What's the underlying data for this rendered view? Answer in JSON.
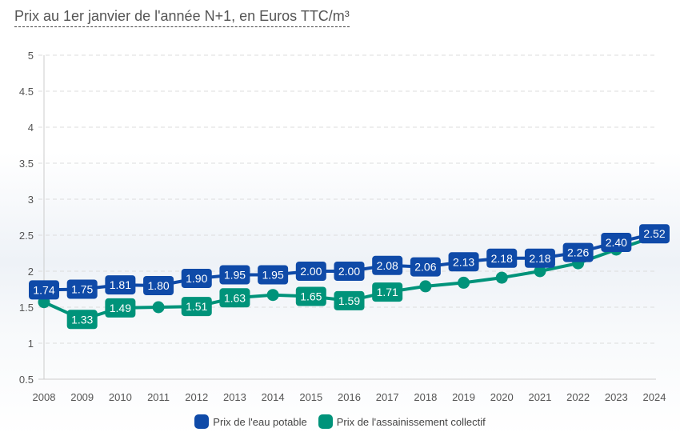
{
  "chart_data": {
    "type": "line",
    "title": "Prix au 1er janvier de l'année N+1, en Euros TTC/m³",
    "xlabel": "",
    "ylabel": "",
    "categories": [
      "2008",
      "2009",
      "2010",
      "2011",
      "2012",
      "2013",
      "2014",
      "2015",
      "2016",
      "2017",
      "2018",
      "2019",
      "2020",
      "2021",
      "2022",
      "2023",
      "2024"
    ],
    "ylim": [
      0.5,
      5
    ],
    "yticks": [
      "0.5",
      "1",
      "1.5",
      "2",
      "2.5",
      "3",
      "3.5",
      "4",
      "4.5",
      "5"
    ],
    "grid": true,
    "legend_position": "bottom",
    "series": [
      {
        "name": "Prix de l'eau potable",
        "color": "#0f4aa8",
        "values": [
          1.74,
          1.75,
          1.81,
          1.8,
          1.9,
          1.95,
          1.95,
          2.0,
          2.0,
          2.08,
          2.06,
          2.13,
          2.18,
          2.18,
          2.26,
          2.4,
          2.52
        ],
        "labels": [
          "1.74",
          "1.75",
          "1.81",
          "1.80",
          "1.90",
          "1.95",
          "1.95",
          "2.00",
          "2.00",
          "2.08",
          "2.06",
          "2.13",
          "2.18",
          "2.18",
          "2.26",
          "2.40",
          "2.52"
        ]
      },
      {
        "name": "Prix de l'assainissement collectif",
        "color": "#00937a",
        "values": [
          1.57,
          1.33,
          1.49,
          1.5,
          1.51,
          1.63,
          1.67,
          1.65,
          1.59,
          1.71,
          1.79,
          1.84,
          1.91,
          2.0,
          2.11,
          2.3,
          2.48
        ],
        "labels": [
          "",
          "1.33",
          "1.49",
          "",
          "1.51",
          "1.63",
          "",
          "1.65",
          "1.59",
          "1.71",
          "",
          "",
          "",
          "",
          "",
          "",
          ""
        ]
      }
    ]
  }
}
